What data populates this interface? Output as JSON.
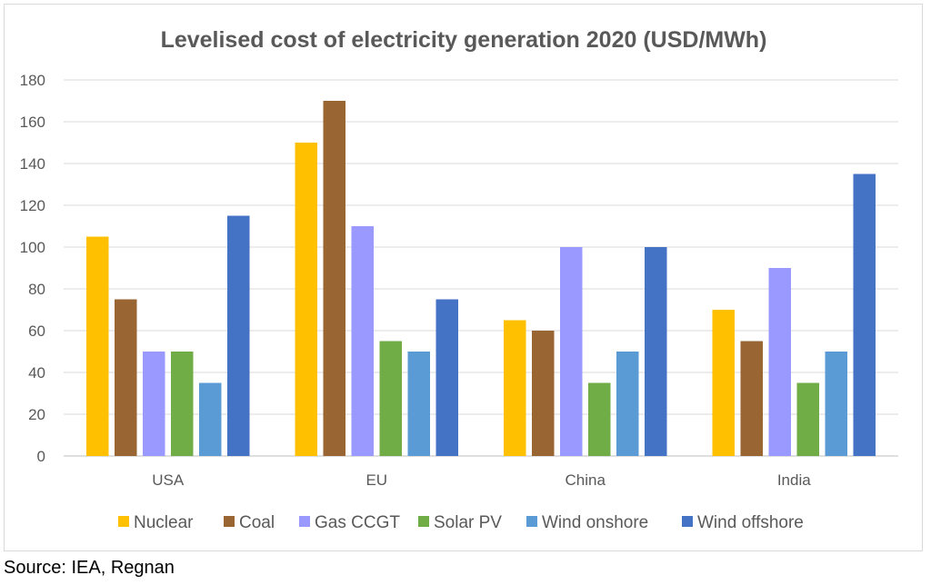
{
  "source": "Source: IEA, Regnan",
  "colors": {
    "Nuclear": "#FFC000",
    "Coal": "#996633",
    "Gas CCGT": "#9999FF",
    "Solar PV": "#70AD47",
    "Wind onshore": "#5B9BD5",
    "Wind offshore": "#4472C4"
  },
  "chart_data": {
    "type": "bar",
    "title": "Levelised cost of electricity generation 2020 (USD/MWh)",
    "xlabel": "",
    "ylabel": "",
    "ylim": [
      0,
      180
    ],
    "yticks": [
      0,
      20,
      40,
      60,
      80,
      100,
      120,
      140,
      160,
      180
    ],
    "grid": true,
    "legend": "bottom",
    "categories": [
      "USA",
      "EU",
      "China",
      "India"
    ],
    "series": [
      {
        "name": "Nuclear",
        "values": [
          105,
          150,
          65,
          70
        ]
      },
      {
        "name": "Coal",
        "values": [
          75,
          170,
          60,
          55
        ]
      },
      {
        "name": "Gas CCGT",
        "values": [
          50,
          110,
          100,
          90
        ]
      },
      {
        "name": "Solar PV",
        "values": [
          50,
          55,
          35,
          35
        ]
      },
      {
        "name": "Wind onshore",
        "values": [
          35,
          50,
          50,
          50
        ]
      },
      {
        "name": "Wind offshore",
        "values": [
          115,
          75,
          100,
          135
        ]
      }
    ]
  }
}
